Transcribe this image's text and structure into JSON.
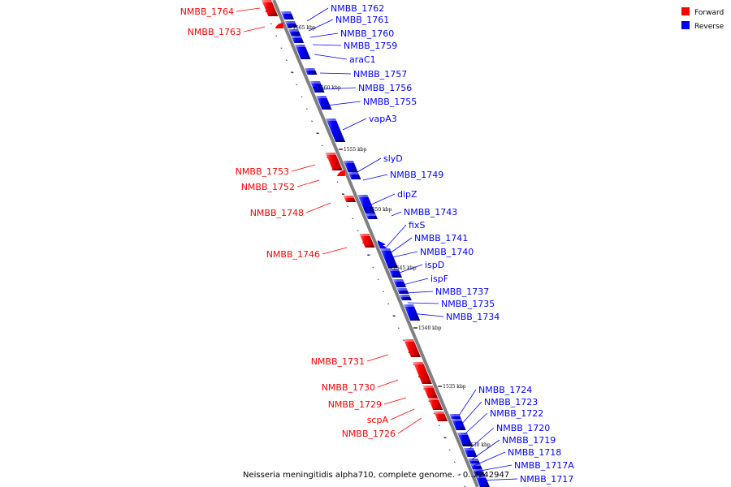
{
  "caption": "Neisseria meningitidis alpha710, complete genome. - 0..2242947",
  "legend": [
    {
      "label": "Forward",
      "color": "#ff0000"
    },
    {
      "label": "Reverse",
      "color": "#0000ff"
    }
  ],
  "colors": {
    "forward": "#ff0000",
    "reverse": "#0000ff",
    "backbone": "#808080"
  },
  "ticks": [
    "1565 kbp",
    "1560 kbp",
    "1555 kbp",
    "1550 kbp",
    "1545 kbp",
    "1540 kbp",
    "1535 kbp",
    "1530 kbp"
  ],
  "genes": [
    {
      "name": "NMBB_1764",
      "strand": "forward"
    },
    {
      "name": "NMBB_1763",
      "strand": "forward"
    },
    {
      "name": "NMBB_1762",
      "strand": "reverse"
    },
    {
      "name": "NMBB_1761",
      "strand": "reverse"
    },
    {
      "name": "NMBB_1760",
      "strand": "reverse"
    },
    {
      "name": "NMBB_1759",
      "strand": "reverse"
    },
    {
      "name": "araC1",
      "strand": "reverse"
    },
    {
      "name": "NMBB_1757",
      "strand": "reverse"
    },
    {
      "name": "NMBB_1756",
      "strand": "reverse"
    },
    {
      "name": "NMBB_1755",
      "strand": "reverse"
    },
    {
      "name": "vapA3",
      "strand": "reverse"
    },
    {
      "name": "slyD",
      "strand": "reverse"
    },
    {
      "name": "NMBB_1753",
      "strand": "forward"
    },
    {
      "name": "NMBB_1749",
      "strand": "reverse"
    },
    {
      "name": "NMBB_1752",
      "strand": "forward"
    },
    {
      "name": "dipZ",
      "strand": "reverse"
    },
    {
      "name": "NMBB_1748",
      "strand": "forward"
    },
    {
      "name": "NMBB_1743",
      "strand": "reverse"
    },
    {
      "name": "fixS",
      "strand": "reverse"
    },
    {
      "name": "NMBB_1741",
      "strand": "reverse"
    },
    {
      "name": "NMBB_1740",
      "strand": "reverse"
    },
    {
      "name": "NMBB_1746",
      "strand": "forward"
    },
    {
      "name": "ispD",
      "strand": "reverse"
    },
    {
      "name": "ispF",
      "strand": "reverse"
    },
    {
      "name": "NMBB_1737",
      "strand": "reverse"
    },
    {
      "name": "NMBB_1735",
      "strand": "reverse"
    },
    {
      "name": "NMBB_1734",
      "strand": "reverse"
    },
    {
      "name": "NMBB_1731",
      "strand": "forward"
    },
    {
      "name": "NMBB_1730",
      "strand": "forward"
    },
    {
      "name": "NMBB_1724",
      "strand": "reverse"
    },
    {
      "name": "NMBB_1729",
      "strand": "forward"
    },
    {
      "name": "NMBB_1723",
      "strand": "reverse"
    },
    {
      "name": "scpA",
      "strand": "forward"
    },
    {
      "name": "NMBB_1722",
      "strand": "reverse"
    },
    {
      "name": "NMBB_1726",
      "strand": "forward"
    },
    {
      "name": "NMBB_1720",
      "strand": "reverse"
    },
    {
      "name": "NMBB_1719",
      "strand": "reverse"
    },
    {
      "name": "NMBB_1718",
      "strand": "reverse"
    },
    {
      "name": "NMBB_1717A",
      "strand": "reverse"
    },
    {
      "name": "NMBB_1717",
      "strand": "reverse"
    }
  ]
}
